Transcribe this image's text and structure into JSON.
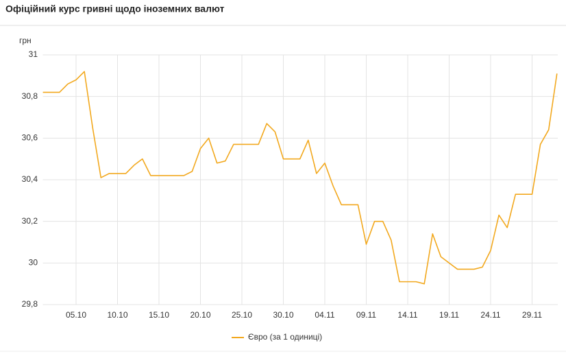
{
  "chart_data": {
    "type": "line",
    "title": "Офіційний курс гривні щодо іноземних валют",
    "y_label": "грн",
    "categories": [
      null,
      null,
      null,
      null,
      "05.10",
      null,
      null,
      null,
      null,
      "10.10",
      null,
      null,
      null,
      null,
      "15.10",
      null,
      null,
      null,
      null,
      "20.10",
      null,
      null,
      null,
      null,
      "25.10",
      null,
      null,
      null,
      null,
      "30.10",
      null,
      null,
      null,
      null,
      "04.11",
      null,
      null,
      null,
      null,
      "09.11",
      null,
      null,
      null,
      null,
      "14.11",
      null,
      null,
      null,
      null,
      "19.11",
      null,
      null,
      null,
      null,
      "24.11",
      null,
      null,
      null,
      null,
      "29.11",
      null,
      null,
      null
    ],
    "series": [
      {
        "name": "Євро (за 1 одиниці)",
        "color": "#f2a81d",
        "values": [
          30.82,
          30.82,
          30.82,
          30.86,
          30.88,
          30.92,
          30.65,
          30.41,
          30.43,
          30.43,
          30.43,
          30.47,
          30.5,
          30.42,
          30.42,
          30.42,
          30.42,
          30.42,
          30.44,
          30.55,
          30.6,
          30.48,
          30.49,
          30.57,
          30.57,
          30.57,
          30.57,
          30.67,
          30.63,
          30.5,
          30.5,
          30.5,
          30.59,
          30.43,
          30.48,
          30.37,
          30.28,
          30.28,
          30.28,
          30.09,
          30.2,
          30.2,
          30.11,
          29.91,
          29.91,
          29.91,
          29.9,
          30.14,
          30.03,
          30.0,
          29.97,
          29.97,
          29.97,
          29.98,
          30.06,
          30.23,
          30.17,
          30.33,
          30.33,
          30.33,
          30.57,
          30.64,
          30.91
        ]
      }
    ],
    "ylim": [
      29.8,
      31
    ],
    "yticks": [
      {
        "value": 29.8,
        "label": "29,8"
      },
      30,
      {
        "value": 30.2,
        "label": "30,2"
      },
      {
        "value": 30.4,
        "label": "30,4"
      },
      {
        "value": 30.6,
        "label": "30,6"
      },
      {
        "value": 30.8,
        "label": "30,8"
      },
      31
    ],
    "grid": true
  }
}
